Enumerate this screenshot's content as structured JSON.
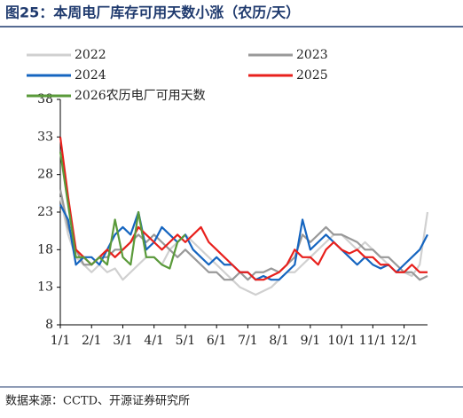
{
  "title": "图25：本周电厂库存可用天数小涨（农历/天）",
  "source": "数据来源：CCTD、开源证券研究所",
  "chart_data": {
    "type": "line",
    "categories": [
      "1/1",
      null,
      null,
      null,
      "2/1",
      null,
      null,
      null,
      "3/1",
      null,
      null,
      null,
      "4/1",
      null,
      null,
      null,
      "5/1",
      null,
      null,
      null,
      "6/1",
      null,
      null,
      null,
      "7/1",
      null,
      null,
      null,
      "8/1",
      null,
      null,
      null,
      "9/1",
      null,
      null,
      null,
      "10/1",
      null,
      null,
      null,
      "11/1",
      null,
      null,
      null,
      "12/1",
      null,
      null,
      null
    ],
    "ylim": [
      8,
      38
    ],
    "yticks": [
      8,
      13,
      18,
      23,
      28,
      33,
      38
    ],
    "series": [
      {
        "name": "2022",
        "color": "#d0d0d0",
        "values": [
          25,
          20,
          17,
          16,
          15,
          16,
          15,
          15.5,
          14,
          15,
          16,
          17,
          17,
          16,
          18,
          19,
          20,
          19,
          18,
          17,
          16,
          15,
          14,
          13,
          12.5,
          12,
          12.5,
          13,
          14,
          15,
          15,
          16,
          17,
          18,
          19,
          20,
          20,
          19,
          18,
          19,
          18,
          17,
          16,
          15,
          15,
          14.5,
          16,
          23
        ]
      },
      {
        "name": "2023",
        "color": "#999999",
        "values": [
          26,
          21,
          18,
          16,
          16,
          17,
          17,
          18,
          18,
          19,
          20,
          19,
          20,
          19,
          18,
          17,
          18,
          17,
          16,
          15,
          15,
          14,
          14,
          15,
          14,
          15,
          15,
          15.5,
          15,
          16,
          17,
          20,
          19,
          20,
          21,
          20,
          20,
          19.5,
          19,
          18,
          18,
          17,
          17,
          16,
          15,
          15,
          14,
          14.5
        ]
      },
      {
        "name": "2024",
        "color": "#1565c0",
        "values": [
          24,
          22,
          16,
          17,
          17,
          16,
          18,
          20,
          21,
          20,
          23,
          18,
          19,
          21,
          20,
          19,
          20,
          18,
          17,
          16,
          17,
          16,
          16,
          15,
          15,
          14,
          14.5,
          14,
          14,
          15,
          16,
          22,
          18,
          19,
          20,
          19,
          18,
          17,
          16,
          17,
          16,
          15.5,
          16,
          15,
          16,
          17,
          18,
          20
        ]
      },
      {
        "name": "2025",
        "color": "#e8201c",
        "values": [
          33,
          25,
          18,
          17,
          16,
          17,
          18,
          17,
          18,
          19,
          21,
          20,
          19,
          18,
          19,
          20,
          19,
          20,
          21,
          19,
          18,
          17,
          16,
          15,
          15,
          14,
          14,
          14.5,
          15,
          16,
          18,
          17,
          17,
          16,
          18,
          19,
          18,
          17.5,
          18,
          17,
          17,
          16,
          16,
          15,
          15,
          16,
          15,
          15
        ]
      },
      {
        "name": "2026农历电厂可用天数",
        "color": "#5a9a3a",
        "values": [
          31,
          24,
          17,
          17,
          16,
          17,
          16,
          22,
          17,
          16,
          23,
          17,
          17,
          16,
          15.5,
          19,
          20,
          null,
          null,
          null,
          null,
          null,
          null,
          null,
          null,
          null,
          null,
          null,
          null,
          null,
          null,
          null,
          null,
          null,
          null,
          null,
          null,
          null,
          null,
          null,
          null,
          null,
          null,
          null,
          null,
          null,
          null,
          null
        ]
      }
    ]
  }
}
